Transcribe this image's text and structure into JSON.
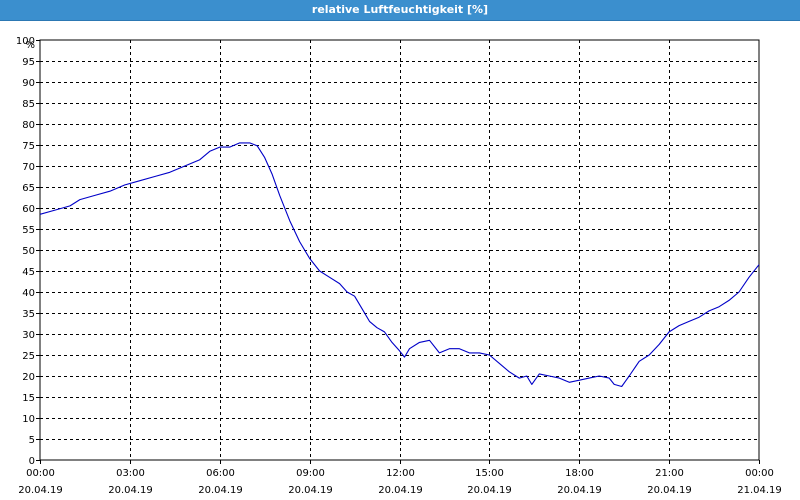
{
  "window": {
    "title": "relative Luftfeuchtigkeit [%]"
  },
  "colors": {
    "title_bar": "#3b8fce",
    "line": "#0000c8",
    "grid": "#000000"
  },
  "chart_data": {
    "type": "line",
    "title": "relative Luftfeuchtigkeit [%]",
    "y_unit": "%",
    "ylim": [
      0,
      100
    ],
    "xlim": [
      "2019-04-20 00:00",
      "2019-04-21 00:00"
    ],
    "grid": true,
    "y_ticks": [
      0,
      5,
      10,
      15,
      20,
      25,
      30,
      35,
      40,
      45,
      50,
      55,
      60,
      65,
      70,
      75,
      80,
      85,
      90,
      95,
      100
    ],
    "x_ticks": [
      {
        "time": "00:00",
        "date": "20.04.19"
      },
      {
        "time": "03:00",
        "date": "20.04.19"
      },
      {
        "time": "06:00",
        "date": "20.04.19"
      },
      {
        "time": "09:00",
        "date": "20.04.19"
      },
      {
        "time": "12:00",
        "date": "20.04.19"
      },
      {
        "time": "15:00",
        "date": "20.04.19"
      },
      {
        "time": "18:00",
        "date": "20.04.19"
      },
      {
        "time": "21:00",
        "date": "20.04.19"
      },
      {
        "time": "00:00",
        "date": "21.04.19"
      }
    ],
    "series": [
      {
        "values": [
          [
            "00:00",
            58.5
          ],
          [
            "00:30",
            59.5
          ],
          [
            "01:00",
            60.5
          ],
          [
            "01:20",
            62
          ],
          [
            "01:50",
            63
          ],
          [
            "02:20",
            64
          ],
          [
            "02:50",
            65.5
          ],
          [
            "03:20",
            66.5
          ],
          [
            "03:50",
            67.5
          ],
          [
            "04:20",
            68.5
          ],
          [
            "04:50",
            70
          ],
          [
            "05:20",
            71.5
          ],
          [
            "05:40",
            73.5
          ],
          [
            "06:00",
            74.5
          ],
          [
            "06:20",
            74.5
          ],
          [
            "06:40",
            75.5
          ],
          [
            "07:00",
            75.5
          ],
          [
            "07:15",
            74.8
          ],
          [
            "07:30",
            72
          ],
          [
            "07:45",
            68
          ],
          [
            "08:00",
            63
          ],
          [
            "08:20",
            57
          ],
          [
            "08:40",
            52
          ],
          [
            "09:00",
            48
          ],
          [
            "09:20",
            45
          ],
          [
            "09:40",
            43.5
          ],
          [
            "10:00",
            42
          ],
          [
            "10:15",
            40
          ],
          [
            "10:30",
            39
          ],
          [
            "10:45",
            36
          ],
          [
            "11:00",
            33
          ],
          [
            "11:15",
            31.5
          ],
          [
            "11:30",
            30.5
          ],
          [
            "11:45",
            28
          ],
          [
            "12:00",
            26
          ],
          [
            "12:10",
            24.5
          ],
          [
            "12:20",
            26.5
          ],
          [
            "12:40",
            28
          ],
          [
            "13:00",
            28.5
          ],
          [
            "13:20",
            25.5
          ],
          [
            "13:40",
            26.5
          ],
          [
            "14:00",
            26.5
          ],
          [
            "14:20",
            25.5
          ],
          [
            "14:40",
            25.5
          ],
          [
            "15:00",
            25
          ],
          [
            "15:20",
            23
          ],
          [
            "15:40",
            21
          ],
          [
            "16:00",
            19.5
          ],
          [
            "16:15",
            20
          ],
          [
            "16:25",
            18
          ],
          [
            "16:40",
            20.5
          ],
          [
            "17:00",
            20
          ],
          [
            "17:20",
            19.5
          ],
          [
            "17:40",
            18.5
          ],
          [
            "18:00",
            19
          ],
          [
            "18:20",
            19.5
          ],
          [
            "18:40",
            20
          ],
          [
            "19:00",
            19.5
          ],
          [
            "19:10",
            18
          ],
          [
            "19:25",
            17.5
          ],
          [
            "19:40",
            20
          ],
          [
            "20:00",
            23.5
          ],
          [
            "20:20",
            25
          ],
          [
            "20:40",
            27.5
          ],
          [
            "21:00",
            30.5
          ],
          [
            "21:20",
            32
          ],
          [
            "21:40",
            33
          ],
          [
            "22:00",
            34
          ],
          [
            "22:20",
            35.5
          ],
          [
            "22:40",
            36.5
          ],
          [
            "23:00",
            38
          ],
          [
            "23:20",
            40
          ],
          [
            "23:40",
            43.5
          ],
          [
            "24:00",
            46.5
          ]
        ]
      }
    ]
  }
}
